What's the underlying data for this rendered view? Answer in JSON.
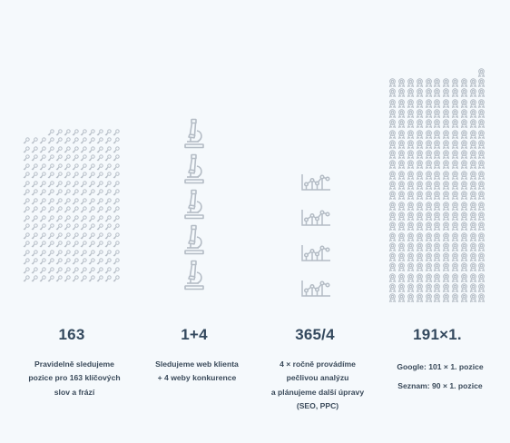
{
  "colors": {
    "background": "#f5f9fc",
    "icon": "#b4bcc5",
    "text": "#34495e"
  },
  "columns": [
    {
      "icon": "key-icon",
      "icon_count": 213,
      "number": "163",
      "lines": [
        "Pravidelně sledujeme",
        "pozice pro 163 klíčových",
        "slov a frází"
      ]
    },
    {
      "icon": "microscope-icon",
      "icon_count": 5,
      "number": "1+4",
      "lines": [
        "Sledujeme web klienta",
        "+ 4 weby konkurence"
      ]
    },
    {
      "icon": "line-chart-icon",
      "icon_count": 4,
      "number": "365/4",
      "lines": [
        "4 × ročně provádíme",
        "pečlivou analýzu",
        "a plánujeme další úpravy",
        "(SEO, PPC)"
      ]
    },
    {
      "icon": "award-icon",
      "icon_count": 243,
      "number": "191×1.",
      "lines": [
        "Google: 101 × 1. pozice",
        "Seznam: 90 × 1. pozice"
      ]
    }
  ]
}
